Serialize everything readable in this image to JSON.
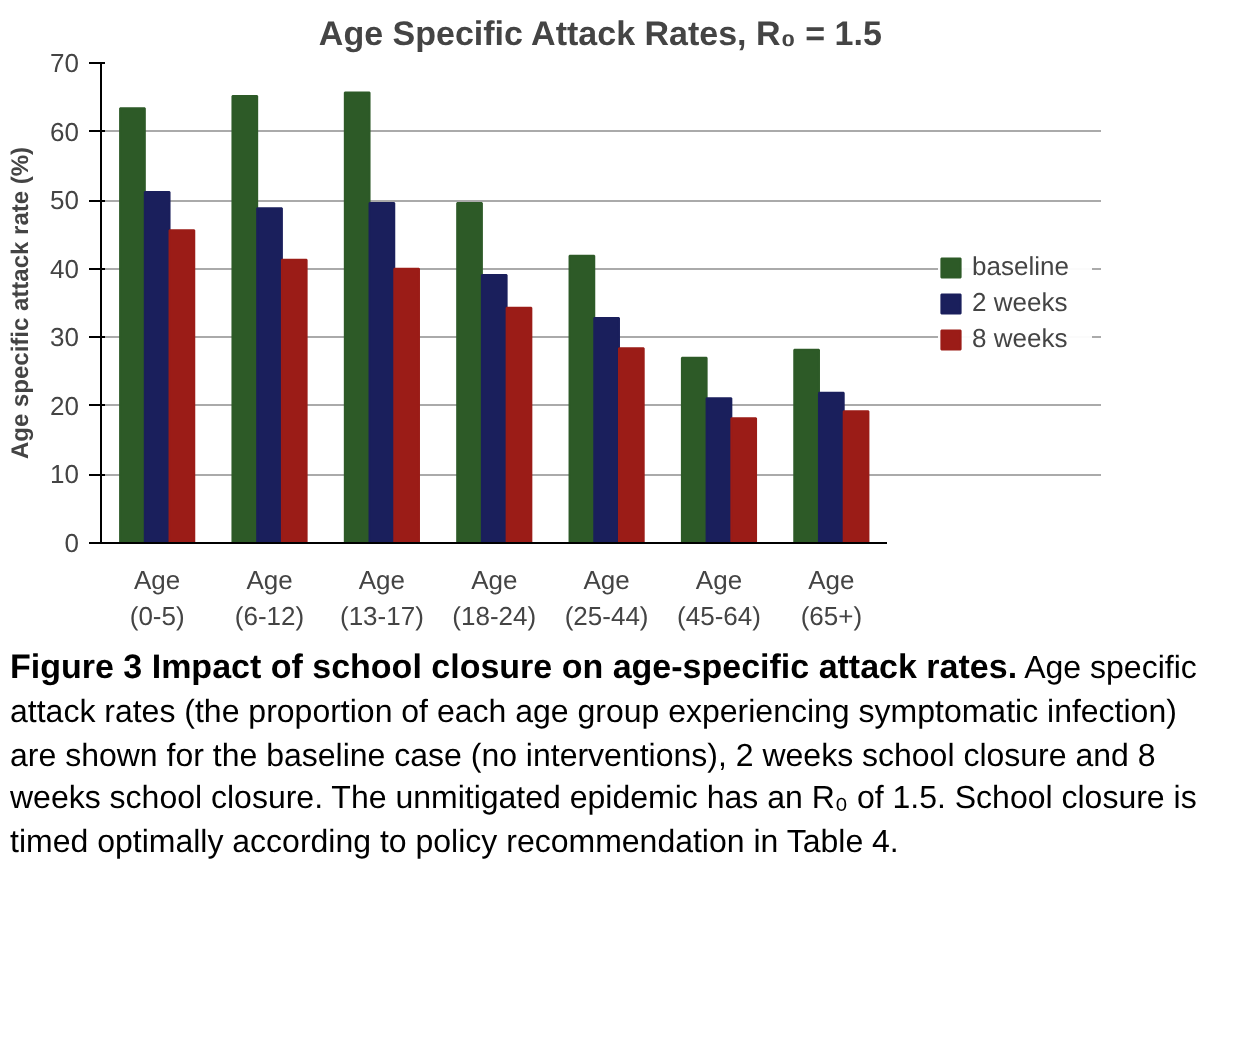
{
  "chart_data": {
    "type": "bar",
    "title": "Age Specific Attack Rates, R₀ = 1.5",
    "ylabel": "Age specific attack rate (%)",
    "categories": [
      "Age\n(0-5)",
      "Age\n(6-12)",
      "Age\n(13-17)",
      "Age\n(18-24)",
      "Age\n(25-44)",
      "Age\n(45-64)",
      "Age\n(65+)"
    ],
    "series": [
      {
        "name": "baseline",
        "color": "#2d5a27",
        "values": [
          63.4,
          65.2,
          65.7,
          49.6,
          41.9,
          27.0,
          28.2
        ]
      },
      {
        "name": "2 weeks",
        "color": "#1a1f5c",
        "values": [
          51.2,
          48.8,
          49.6,
          39.1,
          32.8,
          21.1,
          21.9
        ]
      },
      {
        "name": "8 weeks",
        "color": "#9b1c17",
        "values": [
          45.6,
          41.3,
          40.0,
          34.3,
          28.4,
          18.2,
          19.2
        ]
      }
    ],
    "ylim": [
      0,
      70
    ],
    "yticks": [
      0,
      10,
      20,
      30,
      40,
      50,
      60,
      70
    ],
    "grid": "y",
    "legend": "right",
    "annotations": [
      "Figure 3 Impact of school closure on age-specific attack rates.",
      "Age specific attack rates (the proportion of each age group experiencing symptomatic infection) are shown for the baseline case (no interventions), 2 weeks school closure and 8 weeks school closure. The unmitigated epidemic has an R₀ of 1.5. School closure is timed optimally according to policy recommendation in Table 4."
    ]
  }
}
